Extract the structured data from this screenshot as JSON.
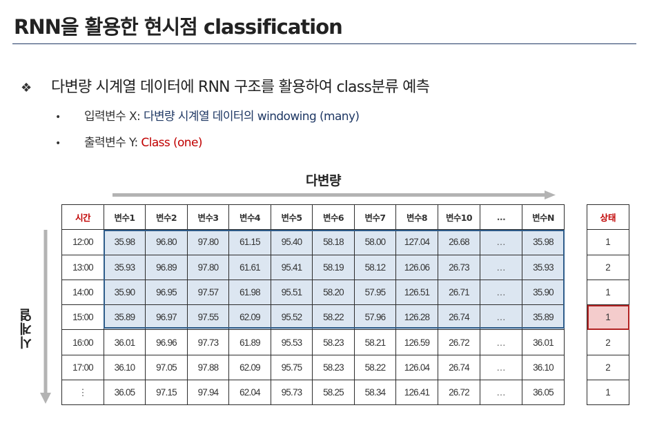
{
  "title": "RNN을 활용한 현시점 classification",
  "bullet": {
    "mark": "❖",
    "text": "다변량 시계열 데이터에 RNN 구조를 활용하여 class분류 예측"
  },
  "sub_bullets": [
    {
      "mark": "•",
      "prefix": "입력변수 X: ",
      "highlight": "다변량 시계열 데이터의 windowing (many)"
    },
    {
      "mark": "•",
      "prefix": "출력변수 Y: ",
      "highlight": "Class (one)"
    }
  ],
  "diagram": {
    "horizontal_label": "다변량",
    "vertical_label": "시계열"
  },
  "table": {
    "headers": [
      "시간",
      "변수1",
      "변수2",
      "변수3",
      "변수4",
      "변수5",
      "변수6",
      "변수7",
      "변수8",
      "변수10",
      "…",
      "변수N"
    ],
    "rows": [
      [
        "12:00",
        "35.98",
        "96.80",
        "97.80",
        "61.15",
        "95.40",
        "58.18",
        "58.00",
        "127.04",
        "26.68",
        "…",
        "35.98"
      ],
      [
        "13:00",
        "35.93",
        "96.89",
        "97.80",
        "61.61",
        "95.41",
        "58.19",
        "58.12",
        "126.06",
        "26.73",
        "…",
        "35.93"
      ],
      [
        "14:00",
        "35.90",
        "96.95",
        "97.57",
        "61.98",
        "95.51",
        "58.20",
        "57.95",
        "126.51",
        "26.71",
        "…",
        "35.90"
      ],
      [
        "15:00",
        "35.89",
        "96.97",
        "97.55",
        "62.09",
        "95.52",
        "58.22",
        "57.96",
        "126.28",
        "26.74",
        "…",
        "35.89"
      ],
      [
        "16:00",
        "36.01",
        "96.96",
        "97.73",
        "61.89",
        "95.53",
        "58.23",
        "58.21",
        "126.59",
        "26.72",
        "…",
        "36.01"
      ],
      [
        "17:00",
        "36.10",
        "97.05",
        "97.88",
        "62.09",
        "95.75",
        "58.23",
        "58.22",
        "126.04",
        "26.74",
        "…",
        "36.10"
      ],
      [
        "⋮",
        "36.05",
        "97.15",
        "97.94",
        "62.04",
        "95.73",
        "58.25",
        "58.34",
        "126.41",
        "26.72",
        "…",
        "36.05"
      ]
    ]
  },
  "status_table": {
    "header": "상태",
    "values": [
      "1",
      "2",
      "1",
      "1",
      "2",
      "2",
      "1"
    ]
  },
  "colors": {
    "accent_blue": "#1f3864",
    "accent_red": "#c00000",
    "window_fill": "#dce6f1",
    "predicted_fill": "#f4cccc"
  }
}
